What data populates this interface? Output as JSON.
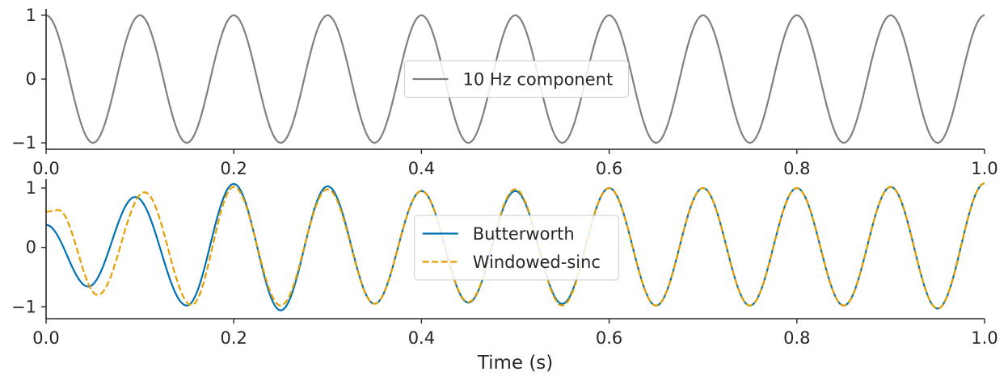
{
  "chart_data": [
    {
      "type": "line",
      "title": "",
      "xlabel": "",
      "ylabel": "",
      "xlim": [
        0.0,
        1.0
      ],
      "ylim": [
        -1.1,
        1.1
      ],
      "x_ticks": [
        "0.0",
        "0.2",
        "0.4",
        "0.6",
        "0.8",
        "1.0"
      ],
      "y_ticks": [
        "1",
        "0",
        "−1"
      ],
      "grid": false,
      "legend_placement": "center",
      "series": [
        {
          "name": "10 Hz component",
          "color": "#808080",
          "style": "solid",
          "frequency_hz": 10,
          "x": [
            0.0,
            0.05,
            0.1,
            0.15,
            0.2,
            0.25,
            0.3,
            0.35,
            0.4,
            0.45,
            0.5,
            0.55,
            0.6,
            0.65,
            0.7,
            0.75,
            0.8,
            0.85,
            0.9,
            0.95,
            1.0
          ],
          "y": [
            1,
            -1,
            1,
            -1,
            1,
            -1,
            1,
            -1,
            1,
            -1,
            1,
            -1,
            1,
            -1,
            1,
            -1,
            1,
            -1,
            1,
            -1,
            1
          ]
        }
      ]
    },
    {
      "type": "line",
      "title": "",
      "xlabel": "Time (s)",
      "ylabel": "",
      "xlim": [
        0.0,
        1.0
      ],
      "ylim": [
        -1.2,
        1.15
      ],
      "x_ticks": [
        "0.0",
        "0.2",
        "0.4",
        "0.6",
        "0.8",
        "1.0"
      ],
      "y_ticks": [
        "1",
        "0",
        "−1"
      ],
      "grid": false,
      "legend_placement": "center",
      "series": [
        {
          "name": "Butterworth",
          "color": "#0072B2",
          "style": "solid",
          "x": [
            0.0,
            0.045,
            0.095,
            0.15,
            0.2,
            0.25,
            0.3,
            0.35,
            0.4,
            0.45,
            0.5,
            0.55,
            0.6,
            0.65,
            0.7,
            0.75,
            0.8,
            0.85,
            0.9,
            0.95,
            1.0
          ],
          "y": [
            0.38,
            -0.66,
            0.85,
            -0.98,
            1.07,
            -1.06,
            1.03,
            -0.95,
            0.95,
            -0.93,
            0.95,
            -0.95,
            1.0,
            -0.98,
            1.0,
            -0.98,
            1.0,
            -0.98,
            1.02,
            -1.03,
            1.08
          ]
        },
        {
          "name": "Windowed-sinc",
          "color": "#E69F00",
          "style": "dashed",
          "x": [
            0.0,
            0.013,
            0.055,
            0.105,
            0.155,
            0.2,
            0.25,
            0.3,
            0.35,
            0.4,
            0.45,
            0.5,
            0.55,
            0.6,
            0.65,
            0.7,
            0.75,
            0.8,
            0.85,
            0.9,
            0.95,
            1.0
          ],
          "y": [
            0.6,
            0.63,
            -0.8,
            0.93,
            -0.97,
            1.02,
            -0.98,
            0.98,
            -0.95,
            0.95,
            -0.92,
            0.98,
            -0.98,
            1.0,
            -0.98,
            1.0,
            -0.98,
            1.0,
            -0.98,
            1.02,
            -1.03,
            1.08
          ]
        }
      ]
    }
  ]
}
